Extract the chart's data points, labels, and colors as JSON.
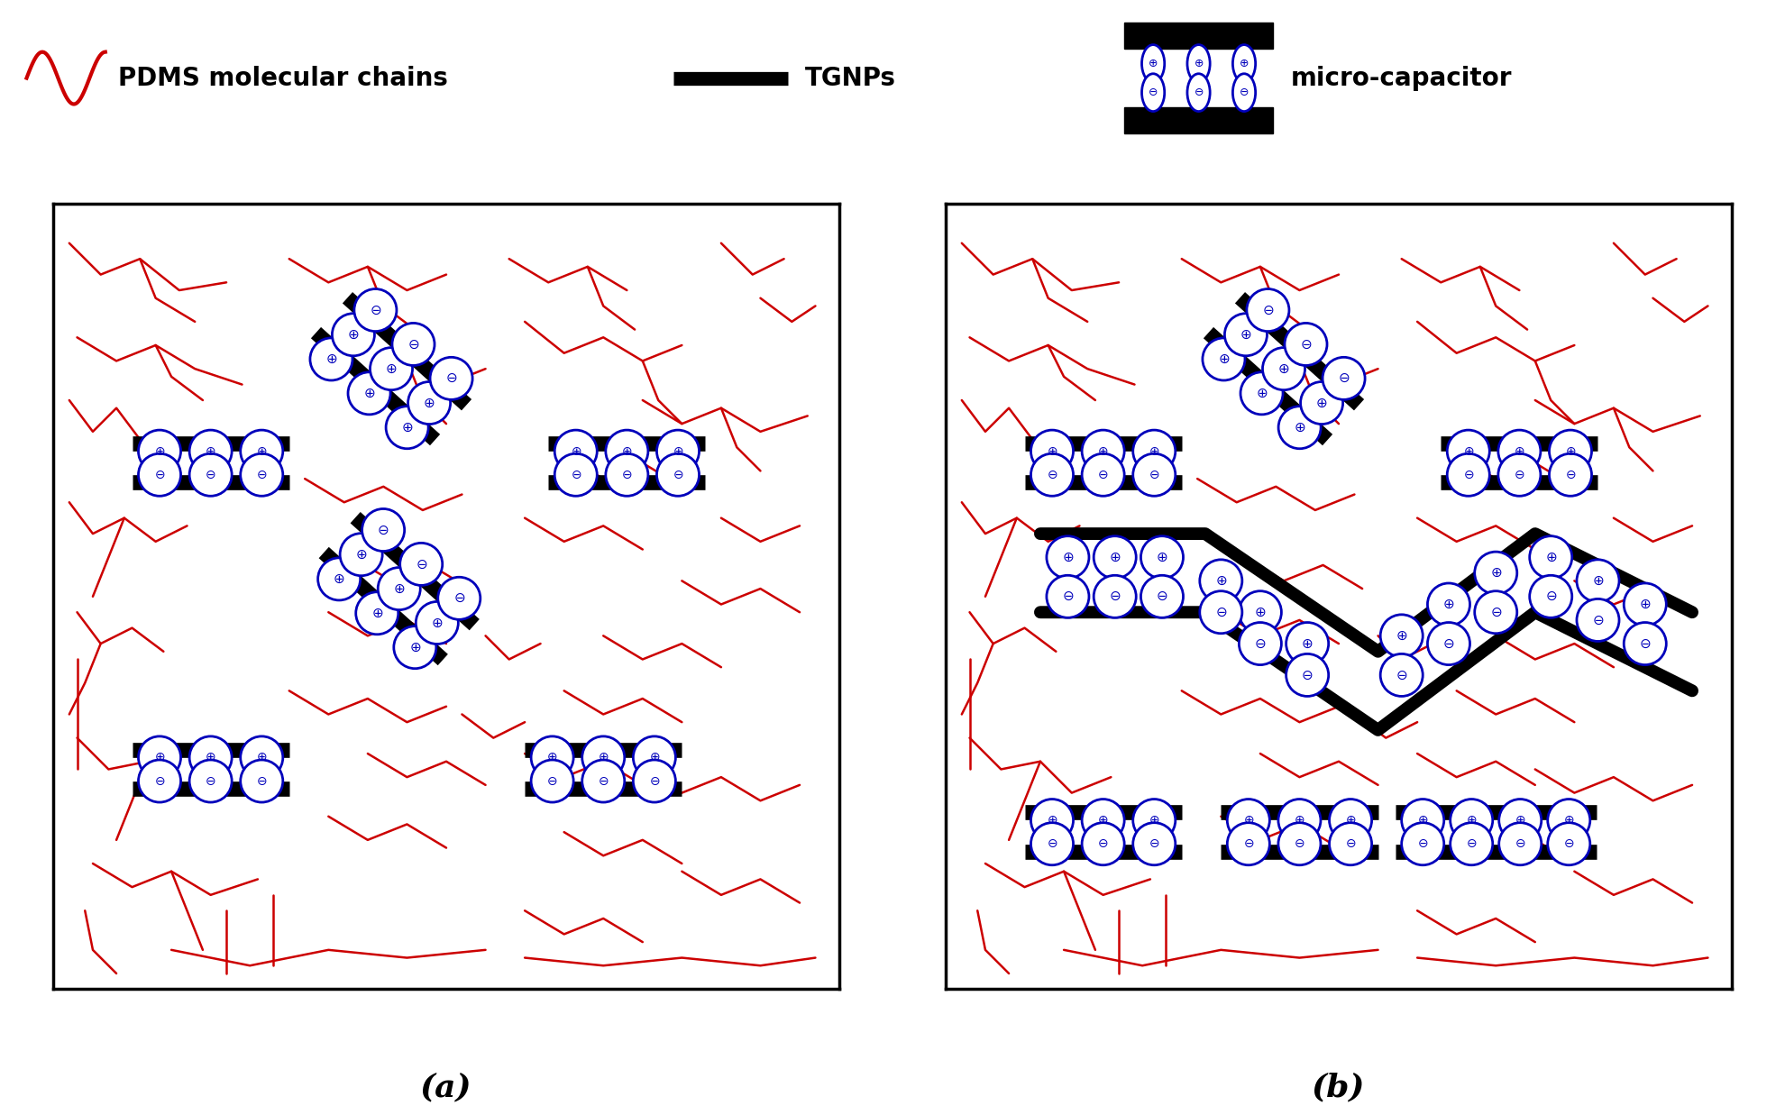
{
  "fig_width": 19.8,
  "fig_height": 12.37,
  "bg_color": "#ffffff",
  "red_color": "#cc0000",
  "black_color": "#000000",
  "blue_color": "#0000bb",
  "panel_a_label": "(a)",
  "panel_b_label": "(b)",
  "legend_pdms": "PDMS molecular chains",
  "legend_tgnps": "TGNPs",
  "legend_microcap": "micro-capacitor"
}
